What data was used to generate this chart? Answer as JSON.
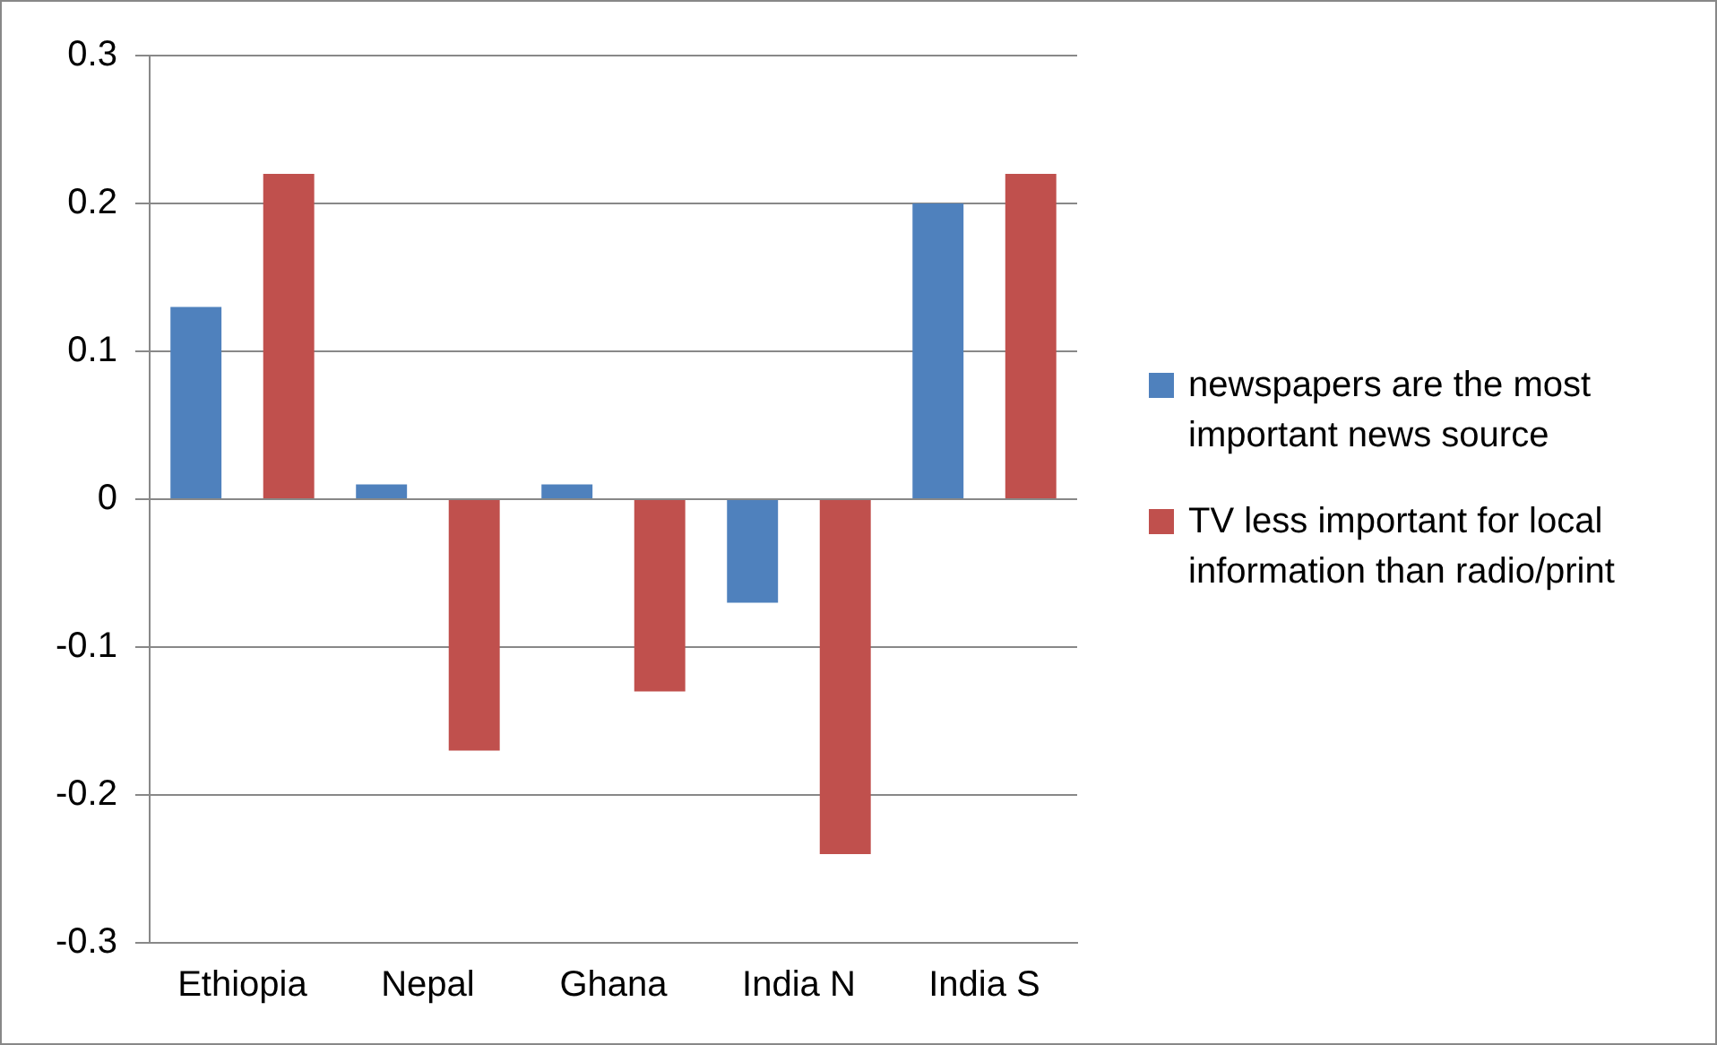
{
  "chart_data": {
    "type": "bar",
    "categories": [
      "Ethiopia",
      "Nepal",
      "Ghana",
      "India N",
      "India S"
    ],
    "series": [
      {
        "name": "newspapers are the most important news source",
        "color": "#4f81bd",
        "values": [
          0.13,
          0.01,
          0.01,
          -0.07,
          0.2
        ]
      },
      {
        "name": "TV less important for local information than radio/print",
        "color": "#c0504d",
        "values": [
          0.22,
          -0.17,
          -0.13,
          -0.24,
          0.22
        ]
      }
    ],
    "ylim": [
      -0.3,
      0.3
    ],
    "yticks": [
      -0.3,
      -0.2,
      -0.1,
      0,
      0.1,
      0.2,
      0.3
    ],
    "grid": "y",
    "legend": "right"
  }
}
